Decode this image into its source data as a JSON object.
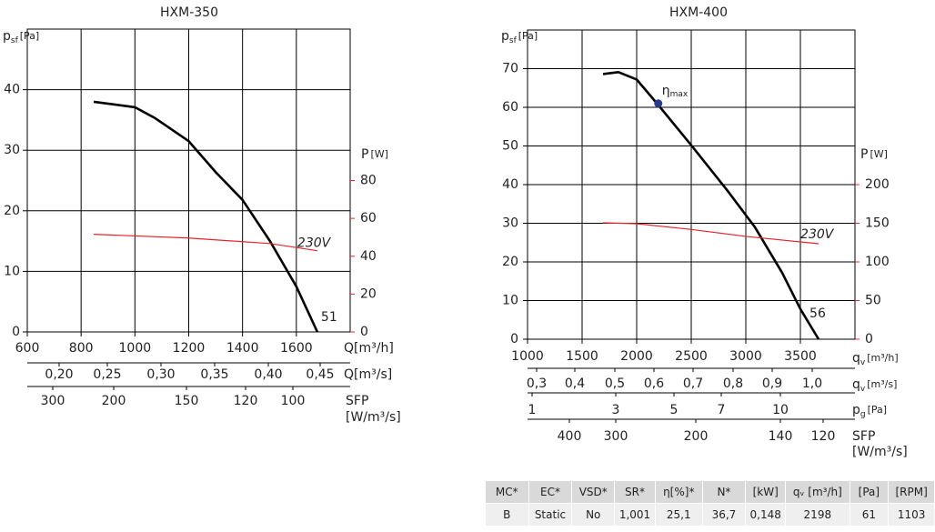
{
  "chart_data": [
    {
      "type": "line",
      "title": "HXM-350",
      "y_label": {
        "symbol": "p",
        "sub": "sf",
        "unit": "[Pa]"
      },
      "y2_label": {
        "symbol": "P",
        "unit": "[W]"
      },
      "x_label": "Q[m³/h]",
      "xlim": [
        600,
        1800
      ],
      "xticks": [
        600,
        800,
        1000,
        1200,
        1400,
        1600
      ],
      "ylim": [
        0,
        50
      ],
      "yticks": [
        0,
        10,
        20,
        30,
        40
      ],
      "y2lim": [
        0,
        160
      ],
      "y2ticks": [
        0,
        20,
        40,
        60,
        80
      ],
      "grid": true,
      "series": [
        {
          "name": "51",
          "color": "#000000",
          "x": [
            847,
            1000,
            1075,
            1200,
            1302,
            1400,
            1502,
            1600,
            1678
          ],
          "values": [
            38.0,
            37.1,
            35.3,
            31.5,
            26.3,
            21.8,
            15.0,
            7.5,
            0
          ]
        },
        {
          "name": "230V",
          "color": "#e3262b",
          "axis": "y2",
          "x": [
            847,
            1200,
            1502,
            1678
          ],
          "values": [
            51.6,
            49.6,
            46.7,
            42.9
          ]
        }
      ],
      "scales": [
        {
          "label": "Q[m³/s]",
          "ticks": [
            {
              "value": 0.2,
              "label": "0,20"
            },
            {
              "value": 0.25,
              "label": "0,25"
            },
            {
              "value": 0.3,
              "label": "0,30"
            },
            {
              "value": 0.35,
              "label": "0,35"
            },
            {
              "value": 0.4,
              "label": "0,40"
            },
            {
              "value": 0.45,
              "label": "0,45"
            }
          ]
        },
        {
          "label": "SFP",
          "unit": "[W/m³/s]",
          "ticks": [
            300,
            200,
            150,
            120,
            100
          ]
        }
      ]
    },
    {
      "type": "line",
      "title": "HXM-400",
      "y_label": {
        "symbol": "p",
        "sub": "sf",
        "unit": "[Pa]"
      },
      "y2_label": {
        "symbol": "P",
        "unit": "[W]"
      },
      "x_label": {
        "symbol": "q",
        "sub": "v",
        "unit": "[m³/h]"
      },
      "xlim": [
        1000,
        4000
      ],
      "xticks": [
        1000,
        1500,
        2000,
        2500,
        3000,
        3500
      ],
      "ylim": [
        0,
        80
      ],
      "yticks": [
        0,
        10,
        20,
        30,
        40,
        50,
        60,
        70
      ],
      "y2lim": [
        0,
        400
      ],
      "y2ticks": [
        0,
        50,
        100,
        150,
        200
      ],
      "grid": true,
      "series": [
        {
          "name": "56",
          "color": "#000000",
          "x": [
            1692,
            1833,
            2000,
            2192,
            2500,
            2833,
            3083,
            3333,
            3500,
            3667
          ],
          "values": [
            68.6,
            69.1,
            67.2,
            60.8,
            50.2,
            38.4,
            29.0,
            17.2,
            7.8,
            0
          ]
        },
        {
          "name": "230V",
          "color": "#e3262b",
          "axis": "y2",
          "x": [
            1692,
            2000,
            2500,
            3000,
            3667
          ],
          "values": [
            150.6,
            149.4,
            142,
            133,
            123.5
          ]
        }
      ],
      "marker": {
        "symbol": "η",
        "sub": "max",
        "x": 2198,
        "y": 61,
        "color": "#2a3990"
      },
      "scales": [
        {
          "label": {
            "symbol": "q",
            "sub": "v",
            "unit": "[m³/s]"
          },
          "ticks": [
            {
              "value": 0.3,
              "label": "0,3"
            },
            {
              "value": 0.4,
              "label": "0,4"
            },
            {
              "value": 0.5,
              "label": "0,5"
            },
            {
              "value": 0.6,
              "label": "0,6"
            },
            {
              "value": 0.7,
              "label": "0,7"
            },
            {
              "value": 0.8,
              "label": "0,8"
            },
            {
              "value": 0.9,
              "label": "0,9"
            },
            {
              "value": 1.0,
              "label": "1,0"
            }
          ]
        },
        {
          "label": {
            "symbol": "p",
            "sub": "g",
            "unit": "[Pa]"
          },
          "ticks": [
            1,
            3,
            5,
            7,
            10
          ]
        },
        {
          "label": "SFP",
          "unit": "[W/m³/s]",
          "ticks": [
            400,
            300,
            200,
            140,
            120
          ]
        }
      ]
    }
  ],
  "table": {
    "header": [
      "MC*",
      "EC*",
      "VSD*",
      "SR*",
      "η[%]*",
      "N*",
      "[kW]",
      "qᵥ [m³/h]",
      "[Pa]",
      "[RPM]"
    ],
    "rows": [
      [
        "B",
        "Static",
        "No",
        "1,001",
        "25,1",
        "36,7",
        "0,148",
        "2198",
        "61",
        "1103"
      ]
    ]
  }
}
